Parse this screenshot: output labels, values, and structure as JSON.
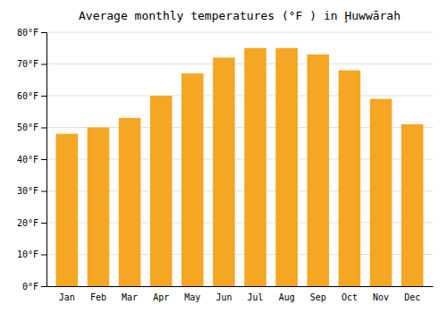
{
  "chart_data": {
    "type": "bar",
    "title": "Average monthly temperatures (°F ) in Ḩuwwārah",
    "categories": [
      "Jan",
      "Feb",
      "Mar",
      "Apr",
      "May",
      "Jun",
      "Jul",
      "Aug",
      "Sep",
      "Oct",
      "Nov",
      "Dec"
    ],
    "values": [
      48,
      50,
      53,
      60,
      67,
      72,
      75,
      75,
      73,
      68,
      59,
      51
    ],
    "color": "#F5A623",
    "ylim": [
      0,
      80
    ],
    "yticks": [
      {
        "value": 0,
        "label": "0°F"
      },
      {
        "value": 10,
        "label": "10°F"
      },
      {
        "value": 20,
        "label": "20°F"
      },
      {
        "value": 30,
        "label": "30°F"
      },
      {
        "value": 40,
        "label": "40°F"
      },
      {
        "value": 50,
        "label": "50°F"
      },
      {
        "value": 60,
        "label": "60°F"
      },
      {
        "value": 70,
        "label": "70°F"
      },
      {
        "value": 80,
        "label": "80°F"
      }
    ],
    "grid": true
  }
}
